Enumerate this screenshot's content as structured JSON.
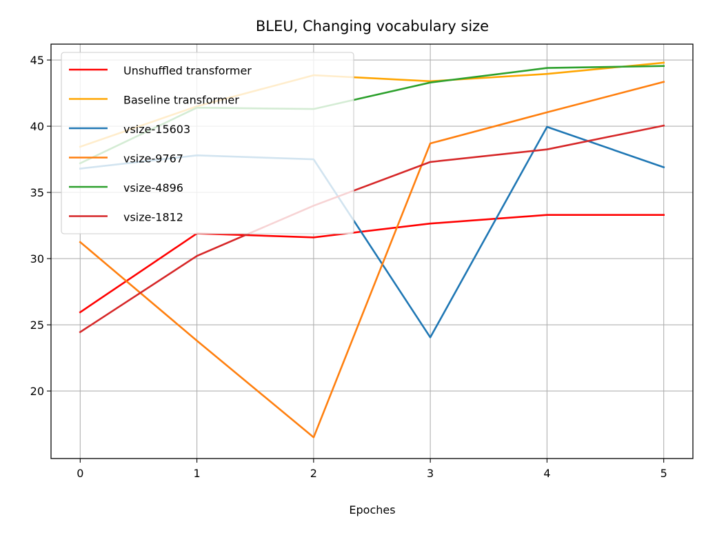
{
  "chart_data": {
    "type": "line",
    "title": "BLEU, Changing vocabulary size",
    "xlabel": "Epoches",
    "ylabel": "",
    "x": [
      0,
      1,
      2,
      3,
      4,
      5
    ],
    "xlim": [
      -0.25,
      5.25
    ],
    "ylim": [
      14.9,
      46.2
    ],
    "xticks": [
      0,
      1,
      2,
      3,
      4,
      5
    ],
    "yticks": [
      20,
      25,
      30,
      35,
      40,
      45
    ],
    "grid": true,
    "legend_position": "upper-left",
    "series": [
      {
        "name": "Unshuffled transformer",
        "color": "#ff0000",
        "values": [
          25.95,
          31.9,
          31.6,
          32.65,
          33.3,
          33.3
        ]
      },
      {
        "name": "Baseline transformer",
        "color": "#ffa500",
        "values": [
          38.45,
          41.5,
          43.85,
          43.4,
          43.95,
          44.8
        ]
      },
      {
        "name": "vsize-15603",
        "color": "#1f77b4",
        "values": [
          36.8,
          37.8,
          37.5,
          24.05,
          39.95,
          36.9
        ]
      },
      {
        "name": "vsize-9767",
        "color": "#ff7f0e",
        "values": [
          31.25,
          23.8,
          16.5,
          38.7,
          41.05,
          43.35
        ]
      },
      {
        "name": "vsize-4896",
        "color": "#2ca02c",
        "values": [
          37.2,
          41.4,
          41.3,
          43.3,
          44.4,
          44.55
        ]
      },
      {
        "name": "vsize-1812",
        "color": "#d62728",
        "values": [
          24.45,
          30.2,
          34.0,
          37.3,
          38.25,
          40.05
        ]
      }
    ]
  }
}
